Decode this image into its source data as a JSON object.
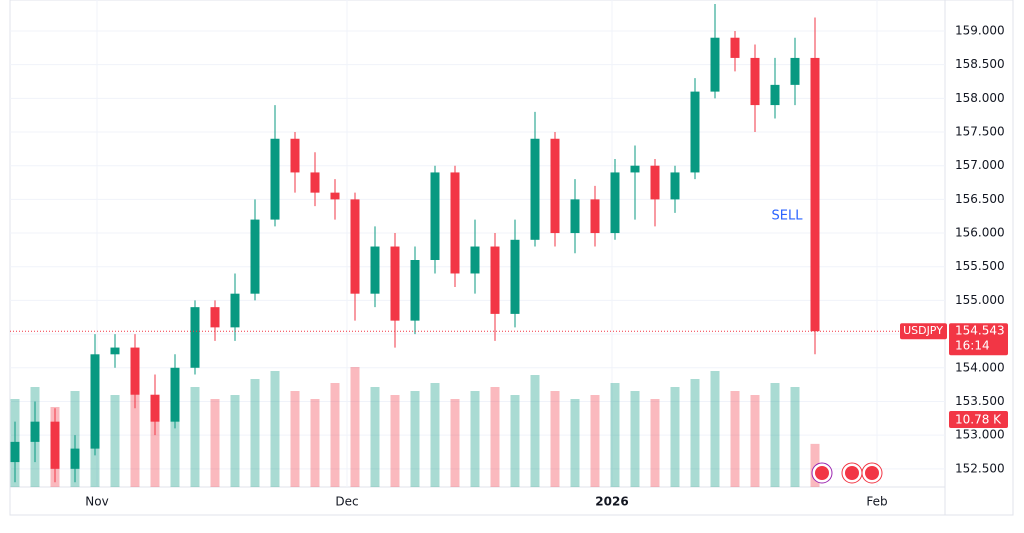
{
  "chart_data": {
    "type": "candlestick",
    "symbol": "USDJPY",
    "last_price_label": "154.543",
    "countdown": "16:14",
    "volume_label": "10.78 K",
    "annotation": {
      "text": "SELL",
      "x": 77.7,
      "y": 156.25
    },
    "xlim": [
      0,
      93.5
    ],
    "ylim": [
      152.23,
      159.46
    ],
    "volume_lim": [
      0,
      40
    ],
    "up_color": "#089981",
    "down_color": "#f23645",
    "annotation_color": "#2962ff",
    "xticks": [
      {
        "value": 8.7,
        "label": "Nov"
      },
      {
        "value": 33.7,
        "label": "Dec"
      },
      {
        "value": 60.2,
        "label": "2026"
      },
      {
        "value": 86.7,
        "label": "Feb"
      }
    ],
    "yticks": [
      {
        "value": 152.5,
        "label": "152.500"
      },
      {
        "value": 153,
        "label": "153.000"
      },
      {
        "value": 153.5,
        "label": "153.500"
      },
      {
        "value": 154,
        "label": "154.000"
      },
      {
        "value": 154.5,
        "label": "154.500"
      },
      {
        "value": 155,
        "label": "155.000"
      },
      {
        "value": 155.5,
        "label": "155.500"
      },
      {
        "value": 156,
        "label": "156.000"
      },
      {
        "value": 156.5,
        "label": "156.500"
      },
      {
        "value": 157,
        "label": "157.000"
      },
      {
        "value": 157.5,
        "label": "157.500"
      },
      {
        "value": 158,
        "label": "158.000"
      },
      {
        "value": 158.5,
        "label": "158.500"
      },
      {
        "value": 159,
        "label": "159.000"
      }
    ],
    "x": [
      0.5,
      2.5,
      4.5,
      6.5,
      8.5,
      10.5,
      12.5,
      14.5,
      16.5,
      18.5,
      20.5,
      22.5,
      24.5,
      26.5,
      28.5,
      30.5,
      32.5,
      34.5,
      36.5,
      38.5,
      40.5,
      42.5,
      44.5,
      46.5,
      48.5,
      50.5,
      52.5,
      54.5,
      56.5,
      58.5,
      60.5,
      62.5,
      64.5,
      66.5,
      68.5,
      70.5,
      72.5,
      74.5,
      76.5,
      78.5,
      80.5
    ],
    "open": [
      152.6,
      152.9,
      153.2,
      152.5,
      152.8,
      154.2,
      154.3,
      153.6,
      153.2,
      154.0,
      154.9,
      154.6,
      155.1,
      156.2,
      157.4,
      156.9,
      156.6,
      156.5,
      155.1,
      155.8,
      154.7,
      155.6,
      156.9,
      155.4,
      155.8,
      154.8,
      155.9,
      157.4,
      156.0,
      156.5,
      156.0,
      156.9,
      157.0,
      156.5,
      156.9,
      158.1,
      158.9,
      158.6,
      157.9,
      158.2,
      158.6
    ],
    "high": [
      153.2,
      153.5,
      153.4,
      153.0,
      154.5,
      154.5,
      154.5,
      153.9,
      154.2,
      155.0,
      155.0,
      155.4,
      156.5,
      157.9,
      157.5,
      157.2,
      156.8,
      156.6,
      156.1,
      156.0,
      155.8,
      157.0,
      157.0,
      156.2,
      156.0,
      156.2,
      157.8,
      157.5,
      156.8,
      156.7,
      157.1,
      157.3,
      157.1,
      157.0,
      158.3,
      159.4,
      159.0,
      158.8,
      158.6,
      158.9,
      159.2
    ],
    "low": [
      152.3,
      152.6,
      152.3,
      152.3,
      152.7,
      154.0,
      153.4,
      153.0,
      153.1,
      153.9,
      154.4,
      154.4,
      155.0,
      156.1,
      156.6,
      156.4,
      156.2,
      154.7,
      154.9,
      154.3,
      154.5,
      155.4,
      155.2,
      155.1,
      154.4,
      154.6,
      155.8,
      155.8,
      155.7,
      155.8,
      155.9,
      156.2,
      156.1,
      156.3,
      156.8,
      158.0,
      158.4,
      157.5,
      157.7,
      157.9,
      154.2
    ],
    "close": [
      152.9,
      153.2,
      152.5,
      152.8,
      154.2,
      154.3,
      153.6,
      153.2,
      154.0,
      154.9,
      154.6,
      155.1,
      156.2,
      157.4,
      156.9,
      156.6,
      156.5,
      155.1,
      155.8,
      154.7,
      155.6,
      156.9,
      155.4,
      155.8,
      154.8,
      155.9,
      157.4,
      156.0,
      156.5,
      156.0,
      156.9,
      157.0,
      156.5,
      156.9,
      158.1,
      158.9,
      158.6,
      157.9,
      158.2,
      158.6,
      154.543
    ],
    "volume": [
      22,
      25,
      20,
      24,
      27,
      23,
      26,
      21,
      24,
      25,
      22,
      23,
      27,
      29,
      24,
      22,
      26,
      30,
      25,
      23,
      24,
      26,
      22,
      24,
      25,
      23,
      28,
      24,
      22,
      23,
      26,
      24,
      22,
      25,
      27,
      29,
      24,
      23,
      26,
      25,
      10.78
    ]
  }
}
